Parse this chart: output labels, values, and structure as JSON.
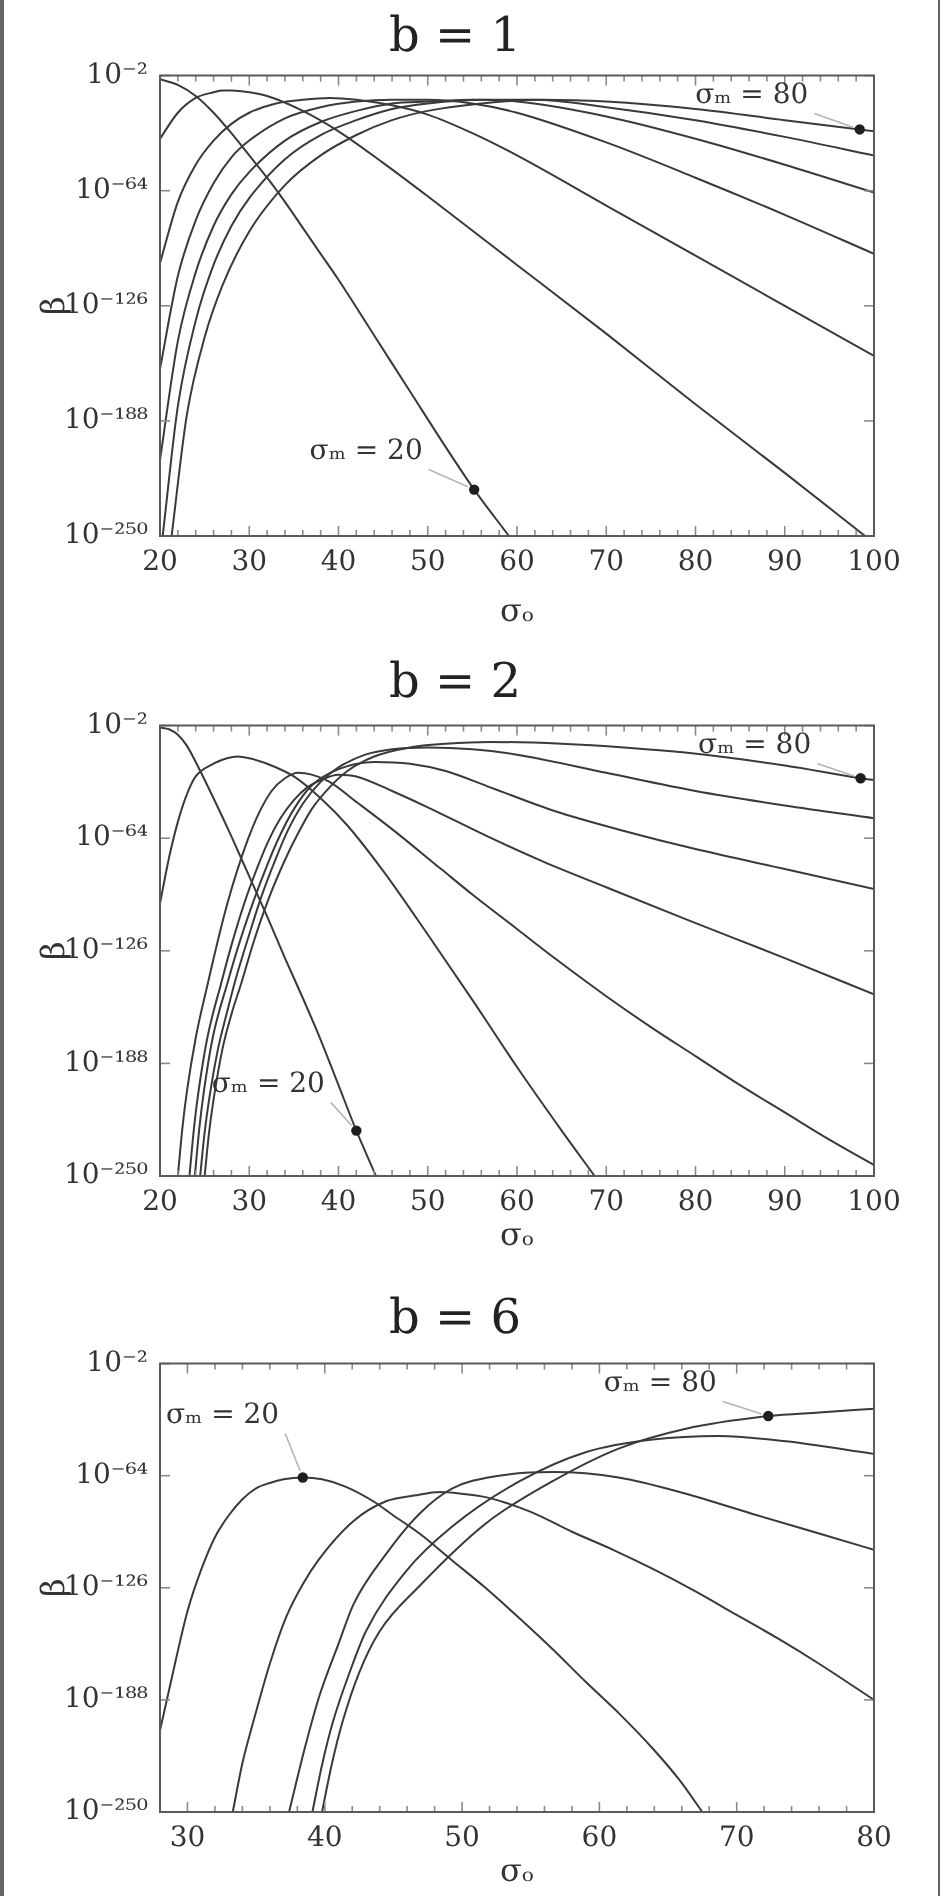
{
  "chart_data": [
    {
      "type": "line",
      "title": "b = 1",
      "xlabel": "σₒ",
      "ylabel": "β",
      "log": "y",
      "xlim": [
        20,
        100
      ],
      "ylim": [
        1e-250,
        0.01
      ],
      "xticks": [
        20,
        {
          "value": 22,
          "label": null
        },
        {
          "value": 24,
          "label": null
        },
        {
          "value": 26,
          "label": null
        },
        {
          "value": 28,
          "label": null
        },
        30,
        {
          "value": 32,
          "label": null
        },
        {
          "value": 34,
          "label": null
        },
        {
          "value": 36,
          "label": null
        },
        {
          "value": 38,
          "label": null
        },
        40,
        {
          "value": 42,
          "label": null
        },
        {
          "value": 44,
          "label": null
        },
        {
          "value": 46,
          "label": null
        },
        {
          "value": 48,
          "label": null
        },
        50,
        {
          "value": 52,
          "label": null
        },
        {
          "value": 54,
          "label": null
        },
        {
          "value": 56,
          "label": null
        },
        {
          "value": 58,
          "label": null
        },
        60,
        {
          "value": 62,
          "label": null
        },
        {
          "value": 64,
          "label": null
        },
        {
          "value": 66,
          "label": null
        },
        {
          "value": 68,
          "label": null
        },
        70,
        {
          "value": 72,
          "label": null
        },
        {
          "value": 74,
          "label": null
        },
        {
          "value": 76,
          "label": null
        },
        {
          "value": 78,
          "label": null
        },
        80,
        {
          "value": 82,
          "label": null
        },
        {
          "value": 84,
          "label": null
        },
        {
          "value": 86,
          "label": null
        },
        {
          "value": 88,
          "label": null
        },
        90,
        {
          "value": 92,
          "label": null
        },
        {
          "value": 94,
          "label": null
        },
        {
          "value": 96,
          "label": null
        },
        {
          "value": 98,
          "label": null
        },
        100
      ],
      "yticks": [
        {
          "value": 0.01,
          "label": "10⁻²"
        },
        {
          "value": 1e-64,
          "label": "10⁻⁶⁴"
        },
        {
          "value": 1e-126,
          "label": "10⁻¹²⁶"
        },
        {
          "value": 1e-188,
          "label": "10⁻¹⁸⁸"
        },
        {
          "value": 1e-250,
          "label": "10⁻²⁵⁰"
        }
      ],
      "series": [
        {
          "color": "#3a3a3a",
          "x": [
            20,
            22,
            24,
            26,
            28,
            30,
            32,
            34,
            36,
            38,
            40,
            44,
            48,
            52,
            55.2,
            59.1
          ],
          "values": [
            0.0001,
            1e-07,
            1e-13,
            1e-22,
            1e-33,
            1e-45,
            1e-57,
            1e-70,
            1e-84,
            1e-98,
            1e-112,
            1e-142,
            1e-172,
            1e-202,
            1e-225,
            1e-250
          ]
        },
        {
          "color": "#3a3a3a",
          "x": [
            20,
            22,
            24,
            26,
            27,
            28,
            30,
            32,
            36,
            40,
            45,
            50,
            60,
            70,
            80,
            90,
            99
          ],
          "values": [
            1e-36,
            1e-22,
            1e-14,
            1e-11,
            1e-10,
            1e-10,
            1e-11,
            1e-13,
            1e-21,
            1e-32,
            1e-49,
            1e-67,
            1e-104,
            1e-141,
            1e-179,
            1e-216,
            1e-250
          ]
        },
        {
          "color": "#3a3a3a",
          "x": [
            20,
            22,
            24,
            26,
            28,
            30,
            33,
            36,
            39,
            42,
            46,
            50,
            55,
            60,
            70,
            80,
            90,
            100
          ],
          "values": [
            1e-103,
            1e-70,
            1e-50,
            1e-37,
            1e-28,
            1e-22,
            1e-17,
            1e-15,
            1e-14,
            1e-15,
            1e-18,
            1e-23,
            1e-33,
            1e-45,
            1e-72,
            1e-99,
            1e-126,
            1e-153
          ]
        },
        {
          "color": "#3a3a3a",
          "x": [
            20,
            22,
            24,
            26,
            28,
            30,
            34,
            38,
            42,
            46,
            50,
            55,
            60,
            70,
            80,
            90,
            100
          ],
          "values": [
            1e-160,
            1e-110,
            1e-80,
            1e-60,
            1e-46,
            1e-37,
            1e-25,
            1e-19,
            1e-16,
            1e-15,
            1e-15,
            1e-17,
            1e-22,
            1e-38,
            1e-57,
            1e-77,
            1e-98
          ]
        },
        {
          "color": "#3a3a3a",
          "x": [
            20,
            22,
            24,
            26,
            28,
            30,
            34,
            38,
            42,
            46,
            50,
            55,
            60,
            70,
            80,
            90,
            100
          ],
          "values": [
            1e-209,
            1e-145,
            1e-108,
            1e-83,
            1e-66,
            1e-54,
            1e-37,
            1e-27,
            1e-21,
            1e-17,
            1e-16,
            1e-15,
            1e-16,
            1e-24,
            1e-36,
            1e-50,
            1e-65
          ]
        },
        {
          "color": "#3a3a3a",
          "x": [
            20.3,
            22,
            24,
            26,
            28,
            30,
            34,
            38,
            42,
            46,
            50,
            56,
            62,
            70,
            80,
            90,
            100
          ],
          "values": [
            1e-250,
            1e-180,
            1e-134,
            1e-104,
            1e-83,
            1e-68,
            1e-47,
            1e-34,
            1e-26,
            1e-20,
            1e-17,
            1e-15,
            1e-15,
            1e-19,
            1e-26,
            1e-35,
            1e-45
          ]
        },
        {
          "color": "#3a3a3a",
          "x": [
            21.3,
            23,
            25,
            27,
            30,
            34,
            38,
            42,
            46,
            50,
            56,
            63,
            70,
            80,
            90,
            100
          ],
          "values": [
            1e-250,
            1e-185,
            1e-143,
            1e-115,
            1e-86,
            1e-61,
            1e-45,
            1e-34,
            1e-26,
            1e-21,
            1e-17,
            1e-15,
            1e-16,
            1e-20,
            1e-26,
            1e-32
          ]
        }
      ],
      "annotations": [
        {
          "text": "σₘ = 80",
          "x": 98.4,
          "y": 1e-31
        },
        {
          "text": "σₘ = 20",
          "x": 55.2,
          "y": 1e-225
        }
      ]
    },
    {
      "type": "line",
      "title": "b = 2",
      "xlabel": "σₒ",
      "ylabel": "β",
      "log": "y",
      "xlim": [
        20,
        100
      ],
      "ylim": [
        1e-250,
        0.01
      ],
      "xticks": [
        20,
        {
          "value": 22,
          "label": null
        },
        {
          "value": 24,
          "label": null
        },
        {
          "value": 26,
          "label": null
        },
        {
          "value": 28,
          "label": null
        },
        30,
        {
          "value": 32,
          "label": null
        },
        {
          "value": 34,
          "label": null
        },
        {
          "value": 36,
          "label": null
        },
        {
          "value": 38,
          "label": null
        },
        40,
        {
          "value": 42,
          "label": null
        },
        {
          "value": 44,
          "label": null
        },
        {
          "value": 46,
          "label": null
        },
        {
          "value": 48,
          "label": null
        },
        50,
        {
          "value": 52,
          "label": null
        },
        {
          "value": 54,
          "label": null
        },
        {
          "value": 56,
          "label": null
        },
        {
          "value": 58,
          "label": null
        },
        60,
        {
          "value": 62,
          "label": null
        },
        {
          "value": 64,
          "label": null
        },
        {
          "value": 66,
          "label": null
        },
        {
          "value": 68,
          "label": null
        },
        70,
        {
          "value": 72,
          "label": null
        },
        {
          "value": 74,
          "label": null
        },
        {
          "value": 76,
          "label": null
        },
        {
          "value": 78,
          "label": null
        },
        80,
        {
          "value": 82,
          "label": null
        },
        {
          "value": 84,
          "label": null
        },
        {
          "value": 86,
          "label": null
        },
        {
          "value": 88,
          "label": null
        },
        90,
        {
          "value": 92,
          "label": null
        },
        {
          "value": 94,
          "label": null
        },
        {
          "value": 96,
          "label": null
        },
        {
          "value": 98,
          "label": null
        },
        100
      ],
      "yticks": [
        {
          "value": 0.01,
          "label": "10⁻²"
        },
        {
          "value": 1e-64,
          "label": "10⁻⁶⁴"
        },
        {
          "value": 1e-126,
          "label": "10⁻¹²⁶"
        },
        {
          "value": 1e-188,
          "label": "10⁻¹⁸⁸"
        },
        {
          "value": 1e-250,
          "label": "10⁻²⁵⁰"
        }
      ],
      "series": [
        {
          "color": "#3a3a3a",
          "x": [
            20,
            21,
            22,
            23,
            24,
            26,
            28,
            30,
            32,
            34,
            36,
            38,
            40,
            42,
            44.2
          ],
          "values": [
            0.001,
            0.0001,
            1e-07,
            1e-13,
            1e-22,
            1e-42,
            1e-63,
            1e-85,
            1e-107,
            1e-130,
            1e-152,
            1e-175,
            1e-200,
            1e-225,
            1e-250
          ]
        },
        {
          "color": "#3a3a3a",
          "x": [
            20,
            21,
            22,
            23,
            24,
            26,
            27.5,
            28.7,
            30,
            32,
            35,
            38,
            41,
            45,
            50,
            55,
            60,
            65,
            68.7
          ],
          "values": [
            1e-100,
            1e-75,
            1e-55,
            1e-40,
            1e-30,
            1e-23,
            1e-20,
            1e-19,
            1e-20,
            1e-23,
            1e-30,
            1e-42,
            1e-57,
            1e-82,
            1e-117,
            1e-153,
            1e-190,
            1e-225,
            1e-250
          ]
        },
        {
          "color": "#3a3a3a",
          "x": [
            22,
            22.5,
            23,
            24,
            25.4,
            26.5,
            27.6,
            28.7,
            29.9,
            31,
            32.5,
            34,
            35.5,
            37,
            39,
            42,
            46,
            51.5,
            55,
            60,
            64.2,
            70,
            75,
            80,
            85,
            90,
            95,
            100
          ],
          "values": [
            1e-250,
            1e-224,
            1e-204,
            1e-174,
            1e-143,
            1e-120,
            1e-99,
            1e-81,
            1e-64,
            1e-51,
            1e-38,
            1e-31,
            1e-28,
            1e-29,
            1e-33,
            1e-44,
            1e-59,
            1e-81,
            1e-95,
            1e-114,
            1e-130,
            1e-151,
            1e-168,
            1e-184,
            1e-200,
            1e-215,
            1e-230,
            1e-244
          ]
        },
        {
          "color": "#3a3a3a",
          "x": [
            23.3,
            23.8,
            24.3,
            25.3,
            26.9,
            28,
            29.5,
            31,
            32.1,
            33.5,
            35,
            36.5,
            38,
            40,
            42,
            46,
            50,
            56.7,
            63,
            70,
            79.1,
            90,
            100
          ],
          "values": [
            1e-250,
            1e-224,
            1e-204,
            1e-174,
            1e-143,
            1e-123,
            1e-99,
            1e-79,
            1e-66,
            1e-53,
            1e-43,
            1e-36,
            1e-32,
            1e-29,
            1e-30,
            1e-38,
            1e-47,
            1e-63,
            1e-77,
            1e-91,
            1e-109,
            1e-130,
            1e-150
          ]
        },
        {
          "color": "#3a3a3a",
          "x": [
            23.9,
            24.4,
            24.9,
            25.9,
            27.6,
            29,
            30.6,
            32,
            33.2,
            35,
            37,
            40,
            44,
            48,
            52,
            57,
            64.2,
            72,
            80,
            90,
            100
          ],
          "values": [
            1e-250,
            1e-224,
            1e-204,
            1e-174,
            1e-143,
            1e-120,
            1e-97,
            1e-79,
            1e-65,
            1e-48,
            1e-35,
            1e-26,
            1e-22,
            1e-23,
            1e-27,
            1e-36,
            1e-49,
            1e-60,
            1e-70,
            1e-81,
            1e-92
          ]
        },
        {
          "color": "#3a3a3a",
          "x": [
            24.5,
            25,
            25.5,
            26.5,
            27.5,
            28.4,
            30,
            31.3,
            33,
            34.3,
            36,
            38,
            40,
            43,
            46,
            50,
            55,
            60,
            70,
            80,
            90,
            100
          ],
          "values": [
            1e-250,
            1e-226,
            1e-208,
            1e-180,
            1e-160,
            1e-143,
            1e-117,
            1e-97,
            1e-75,
            1e-60,
            1e-45,
            1e-33,
            1e-25,
            1e-18,
            1e-15,
            1e-14,
            1e-15,
            1e-18,
            1e-28,
            1e-38,
            1e-46,
            1e-53
          ]
        },
        {
          "color": "#3a3a3a",
          "x": [
            25,
            25.5,
            26,
            27,
            28,
            29.1,
            30.5,
            32.2,
            34,
            35.4,
            37,
            39,
            41,
            44,
            48,
            52,
            57,
            65,
            72,
            79.1,
            90,
            98.5,
            100
          ],
          "values": [
            1e-250,
            1e-226,
            1e-208,
            1e-180,
            1e-161,
            1e-144,
            1e-121,
            1e-97,
            1e-76,
            1e-62,
            1e-48,
            1e-36,
            1e-27,
            1e-19,
            1e-14,
            1e-12,
            1e-11,
            1e-12,
            1e-14,
            1e-17,
            1e-24,
            1e-31,
            1e-32
          ]
        }
      ],
      "annotations": [
        {
          "text": "σₘ = 80",
          "x": 98.5,
          "y": 1e-31
        },
        {
          "text": "σₘ = 20",
          "x": 42,
          "y": 1e-225
        }
      ]
    },
    {
      "type": "line",
      "title": "b = 6",
      "xlabel": "σₒ",
      "ylabel": "β",
      "log": "y",
      "xlim": [
        28,
        80
      ],
      "ylim": [
        1e-250,
        0.01
      ],
      "xticks": [
        30,
        {
          "value": 32,
          "label": null
        },
        {
          "value": 34,
          "label": null
        },
        {
          "value": 36,
          "label": null
        },
        {
          "value": 38,
          "label": null
        },
        40,
        {
          "value": 42,
          "label": null
        },
        {
          "value": 44,
          "label": null
        },
        {
          "value": 46,
          "label": null
        },
        {
          "value": 48,
          "label": null
        },
        50,
        {
          "value": 52,
          "label": null
        },
        {
          "value": 54,
          "label": null
        },
        {
          "value": 56,
          "label": null
        },
        {
          "value": 58,
          "label": null
        },
        60,
        {
          "value": 62,
          "label": null
        },
        {
          "value": 64,
          "label": null
        },
        {
          "value": 66,
          "label": null
        },
        {
          "value": 68,
          "label": null
        },
        70,
        {
          "value": 72,
          "label": null
        },
        {
          "value": 74,
          "label": null
        },
        {
          "value": 76,
          "label": null
        },
        {
          "value": 78,
          "label": null
        },
        80
      ],
      "yticks": [
        {
          "value": 0.01,
          "label": "10⁻²"
        },
        {
          "value": 1e-64,
          "label": "10⁻⁶⁴"
        },
        {
          "value": 1e-126,
          "label": "10⁻¹²⁶"
        },
        {
          "value": 1e-188,
          "label": "10⁻¹⁸⁸"
        },
        {
          "value": 1e-250,
          "label": "10⁻²⁵⁰"
        }
      ],
      "series": [
        {
          "color": "#3a3a3a",
          "x": [
            28,
            29,
            30,
            31,
            32,
            33,
            34,
            35,
            36,
            37,
            38.4,
            39.8,
            41.5,
            43.5,
            45,
            46.9,
            49.3,
            51.7,
            54.2,
            56.6,
            59,
            61.5,
            63.9,
            65.8,
            67.5
          ],
          "values": [
            1e-205,
            1e-171,
            1e-139,
            1e-116,
            1e-98,
            1e-86,
            1e-77,
            1e-71,
            1e-68,
            1e-66,
            1e-65,
            1e-66,
            1e-70,
            1e-78,
            1e-86,
            1e-96,
            1e-111,
            1e-126,
            1e-143,
            1e-160,
            1e-178,
            1e-196,
            1e-215,
            1e-232,
            1e-250
          ]
        },
        {
          "color": "#3a3a3a",
          "x": [
            33.3,
            34,
            34.8,
            36,
            37.2,
            38.4,
            39.6,
            42.1,
            44.5,
            46.5,
            48.4,
            50,
            51.8,
            55,
            58,
            61,
            64,
            67,
            70,
            73,
            76,
            80
          ],
          "values": [
            1e-250,
            1e-223,
            1e-200,
            1e-168,
            1e-142,
            1e-124,
            1e-110,
            1e-89,
            1e-78,
            1e-75,
            1e-73,
            1e-74,
            1e-76,
            1e-84,
            1e-95,
            1e-105,
            1e-116,
            1e-128,
            1e-141,
            1e-154,
            1e-168,
            1e-188
          ]
        },
        {
          "color": "#3a3a3a",
          "x": [
            37.4,
            38.5,
            39.6,
            41,
            42.1,
            44.5,
            46.9,
            49.3,
            52.7,
            56.6,
            61.4,
            66.3,
            71.1,
            76,
            80
          ],
          "values": [
            1e-250,
            1e-216,
            1e-186,
            1e-157,
            1e-135,
            1e-107,
            1e-85,
            1e-71,
            1e-64,
            1e-62,
            1e-65,
            1e-74,
            1e-85,
            1e-96,
            1e-105
          ]
        },
        {
          "color": "#3a3a3a",
          "x": [
            39.1,
            39.8,
            40.6,
            41.8,
            43,
            45.9,
            49.3,
            54.2,
            59,
            63.9,
            68.7,
            73.6,
            80
          ],
          "values": [
            1e-250,
            1e-224,
            1e-200,
            1e-173,
            1e-150,
            1e-117,
            1e-92,
            1e-67,
            1e-51,
            1e-44,
            1e-42,
            1e-45,
            1e-52
          ]
        },
        {
          "color": "#3a3a3a",
          "x": [
            39.8,
            40.5,
            41.3,
            42.5,
            44,
            46.9,
            51.8,
            56.6,
            61.4,
            66.3,
            72.3,
            76,
            80
          ],
          "values": [
            1e-250,
            1e-224,
            1e-200,
            1e-173,
            1e-150,
            1e-125,
            1e-90,
            1e-67,
            1e-49,
            1e-38,
            1e-31,
            1e-29,
            1e-27
          ]
        }
      ],
      "annotations": [
        {
          "text": "σₘ = 80",
          "x": 72.3,
          "y": 1e-31
        },
        {
          "text": "σₘ = 20",
          "x": 38.4,
          "y": 1e-65
        }
      ]
    }
  ]
}
